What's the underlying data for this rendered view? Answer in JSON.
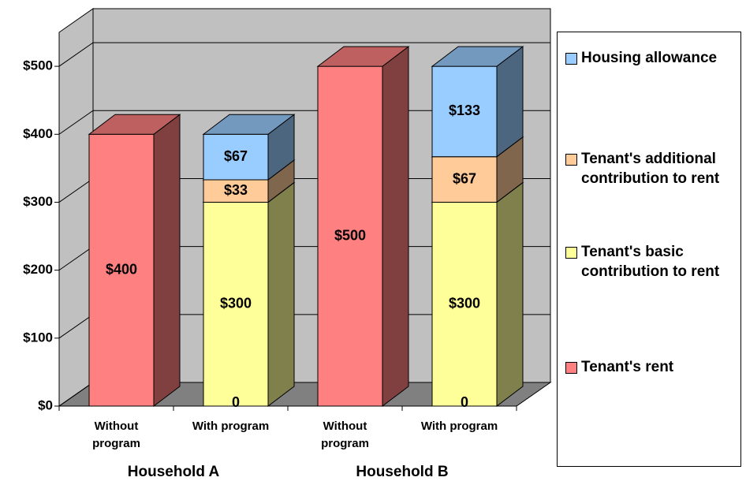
{
  "chart_data": {
    "type": "bar3d_stacked",
    "categories": [
      "Without program",
      "With program",
      "Without program",
      "With program"
    ],
    "groups": [
      {
        "label": "Household A",
        "span": [
          0,
          1
        ]
      },
      {
        "label": "Household B",
        "span": [
          2,
          3
        ]
      }
    ],
    "series": [
      {
        "name": "Tenant's rent",
        "color": "#ff8080",
        "values": [
          400,
          0,
          500,
          0
        ],
        "value_labels": [
          "$400",
          "0",
          "$500",
          "0"
        ]
      },
      {
        "name": "Tenant's basic contribution to rent",
        "color": "#ffff99",
        "values": [
          null,
          300,
          null,
          300
        ],
        "value_labels": [
          null,
          "$300",
          null,
          "$300"
        ]
      },
      {
        "name": "Tenant's additional contribution to rent",
        "color": "#ffcc99",
        "values": [
          null,
          33,
          null,
          67
        ],
        "value_labels": [
          null,
          "$33",
          null,
          "$67"
        ]
      },
      {
        "name": "Housing allowance",
        "color": "#99ccff",
        "values": [
          null,
          67,
          null,
          133
        ],
        "value_labels": [
          null,
          "$67",
          null,
          "$133"
        ]
      }
    ],
    "ylim": [
      0,
      550
    ],
    "yticks": [
      {
        "value": 0,
        "label": "$0"
      },
      {
        "value": 100,
        "label": "$100"
      },
      {
        "value": 200,
        "label": "$200"
      },
      {
        "value": 300,
        "label": "$300"
      },
      {
        "value": 400,
        "label": "$400"
      },
      {
        "value": 500,
        "label": "$500"
      }
    ],
    "grid": true,
    "legend": "right",
    "stacked": true
  }
}
